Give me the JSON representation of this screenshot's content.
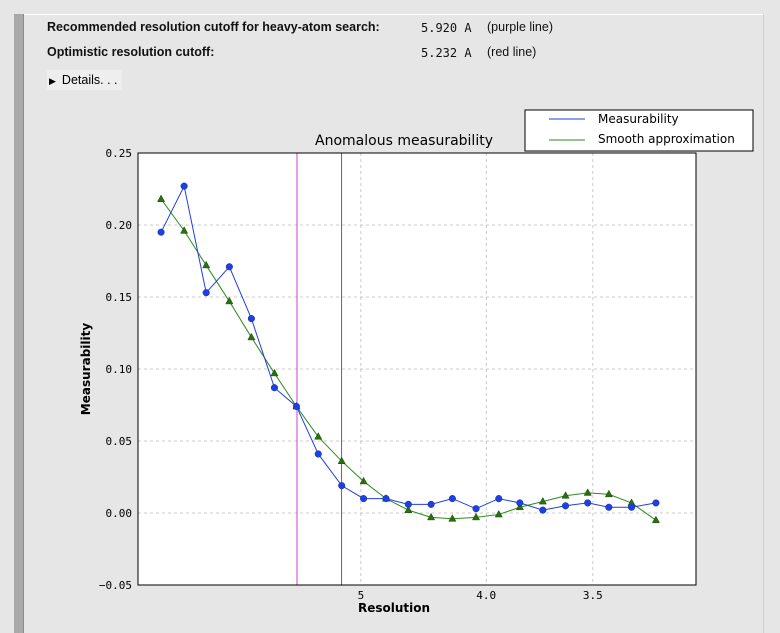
{
  "summary": {
    "recommended": {
      "label": "Recommended resolution cutoff for heavy-atom search:",
      "value": "5.920 A",
      "note": "(purple line)"
    },
    "optimistic": {
      "label": "Optimistic resolution cutoff:",
      "value": "5.232 A",
      "note": "(red line)"
    }
  },
  "details": {
    "label": "Details. . .",
    "icon": "triangle-right-icon"
  },
  "colors": {
    "measurability": "#1f3fe0",
    "smooth": "#2e8b1e",
    "smooth_marker": "#2a6e10",
    "purple_line": "#d040d0",
    "red_line": "#c8402a"
  },
  "chart_data": {
    "type": "line",
    "title": "Anomalous measurability",
    "xlabel": "Resolution",
    "ylabel": "Measurability",
    "x_scale": "1/d^2",
    "xlim_resolution": [
      null,
      3.16
    ],
    "ylim": [
      -0.05,
      0.25
    ],
    "yticks": [
      "0.25",
      "0.20",
      "0.15",
      "0.10",
      "0.05",
      "0.00",
      "−0.05"
    ],
    "xticks": [
      "5",
      "4.0",
      "3.5"
    ],
    "xtick_values": [
      5,
      4.0,
      3.5
    ],
    "ytick_values": [
      0.25,
      0.2,
      0.15,
      0.1,
      0.05,
      0.0,
      -0.05
    ],
    "grid": true,
    "legend_placement": "top-right",
    "x": [
      15.54,
      10.99,
      9.04,
      7.81,
      7.01,
      6.39,
      5.93,
      5.56,
      5.23,
      4.97,
      4.74,
      4.54,
      4.36,
      4.21,
      4.06,
      3.93,
      3.82,
      3.71,
      3.61,
      3.52,
      3.44,
      3.36,
      3.28
    ],
    "series": [
      {
        "name": "Measurability",
        "marker": "circle",
        "values": [
          0.195,
          0.227,
          0.153,
          0.171,
          0.135,
          0.087,
          0.074,
          0.041,
          0.019,
          0.01,
          0.01,
          0.006,
          0.006,
          0.01,
          0.003,
          0.01,
          0.007,
          0.002,
          0.005,
          0.007,
          0.004,
          0.004,
          0.007
        ]
      },
      {
        "name": "Smooth approximation",
        "marker": "triangle",
        "values": [
          0.218,
          0.196,
          0.172,
          0.147,
          0.122,
          0.097,
          0.074,
          0.053,
          0.036,
          0.022,
          0.01,
          0.002,
          -0.003,
          -0.004,
          -0.003,
          -0.001,
          0.004,
          0.008,
          0.012,
          0.014,
          0.013,
          0.007,
          -0.005
        ]
      }
    ],
    "vlines": [
      {
        "resolution": 5.92,
        "color": "purple"
      },
      {
        "resolution": 5.232,
        "color": "red"
      }
    ]
  }
}
